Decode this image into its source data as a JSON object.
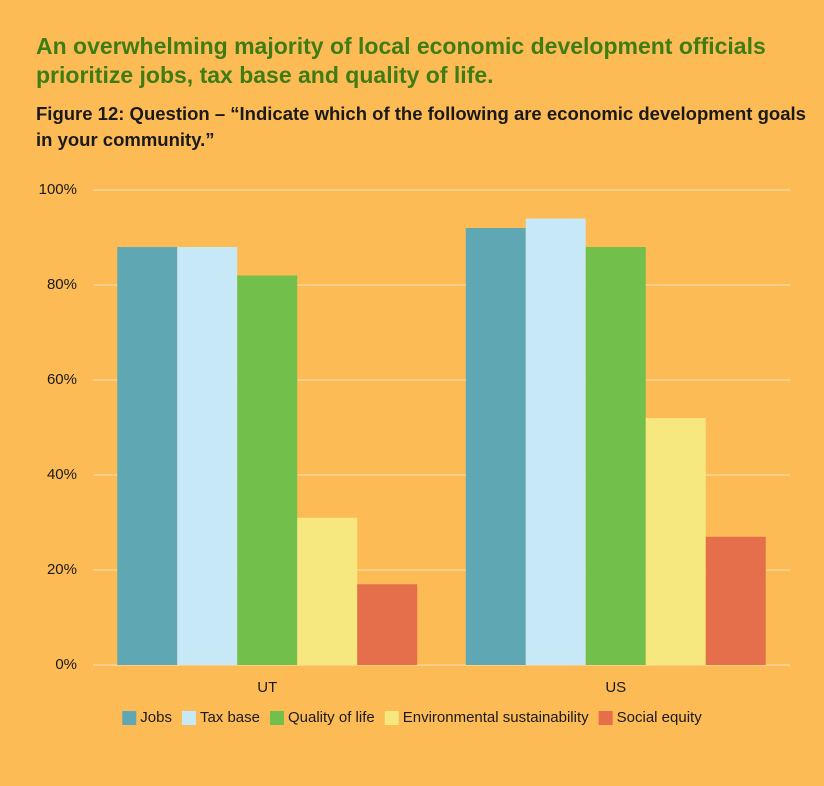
{
  "chart_data": {
    "type": "bar",
    "title": "An overwhelming majority of local economic development officials prioritize jobs, tax base and quality of life.",
    "subtitle": "Figure 12: Question – “Indicate which of the following are economic development goals in your community.”",
    "categories": [
      "UT",
      "US"
    ],
    "series": [
      {
        "name": "Jobs",
        "color": "#5fa8b3",
        "values": [
          88,
          92
        ]
      },
      {
        "name": "Tax base",
        "color": "#c6e8f7",
        "values": [
          88,
          94
        ]
      },
      {
        "name": "Quality of life",
        "color": "#72c04b",
        "values": [
          82,
          88
        ]
      },
      {
        "name": "Environmental sustainability",
        "color": "#f6e87e",
        "values": [
          31,
          52
        ]
      },
      {
        "name": "Social equity",
        "color": "#e46f4a",
        "values": [
          17,
          27
        ]
      }
    ],
    "ylim": [
      0,
      100
    ],
    "yticks": [
      {
        "value": 0,
        "label": "0%"
      },
      {
        "value": 20,
        "label": "20%"
      },
      {
        "value": 40,
        "label": "40%"
      },
      {
        "value": 60,
        "label": "60%"
      },
      {
        "value": 80,
        "label": "80%"
      },
      {
        "value": 100,
        "label": "100%"
      }
    ],
    "grid": true,
    "legend": "bottom"
  }
}
